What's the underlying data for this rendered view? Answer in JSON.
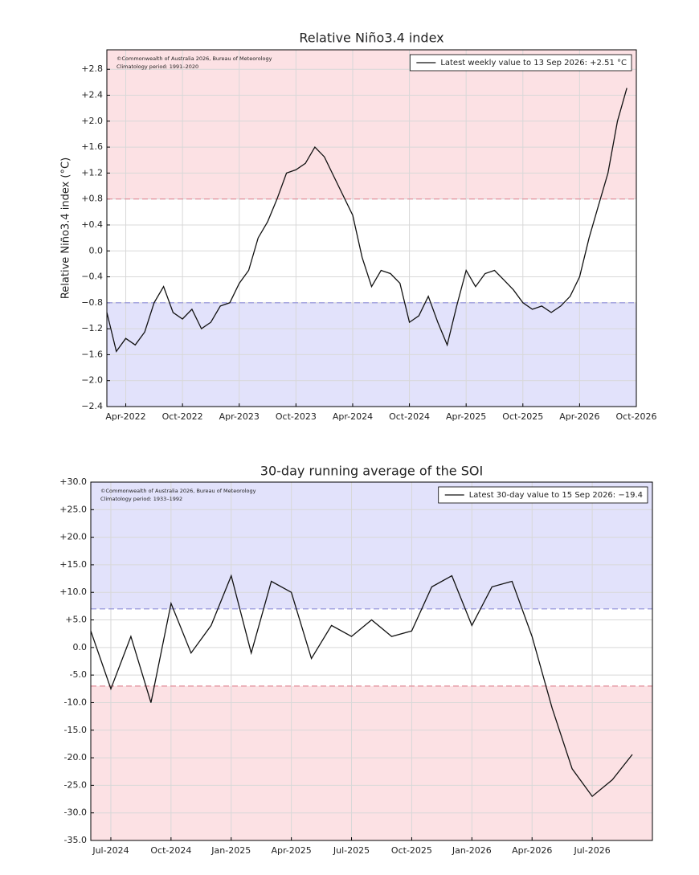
{
  "chart_data": [
    {
      "type": "line",
      "title": "Relative Niño3.4 index",
      "ylabel": "Relative Niño3.4 index (°C)",
      "notes": [
        "©Commonwealth of Australia 2026, Bureau of Meteorology",
        "Climatology period: 1991–2020"
      ],
      "legend": "upper right",
      "grid": true,
      "above": {
        "value": 0.8,
        "color": "#fce1e4",
        "line_color": "#e08a96"
      },
      "below": {
        "value": -0.8,
        "color": "#e2e2fb",
        "line_color": "#8f8fd8"
      },
      "x": [
        "2022-02",
        "2022-03",
        "2022-04",
        "2022-05",
        "2022-06",
        "2022-07",
        "2022-08",
        "2022-09",
        "2022-10",
        "2022-11",
        "2022-12",
        "2023-01",
        "2023-02",
        "2023-03",
        "2023-04",
        "2023-05",
        "2023-06",
        "2023-07",
        "2023-08",
        "2023-09",
        "2023-10",
        "2023-11",
        "2023-12",
        "2024-01",
        "2024-02",
        "2024-03",
        "2024-04",
        "2024-05",
        "2024-06",
        "2024-07",
        "2024-08",
        "2024-09",
        "2024-10",
        "2024-11",
        "2024-12",
        "2025-01",
        "2025-02",
        "2025-03",
        "2025-04",
        "2025-05",
        "2025-06",
        "2025-07",
        "2025-08",
        "2025-09",
        "2025-10",
        "2025-11",
        "2025-12",
        "2026-01",
        "2026-02",
        "2026-03",
        "2026-04",
        "2026-05",
        "2026-06",
        "2026-07",
        "2026-08",
        "2026-09"
      ],
      "series": [
        {
          "name": "Latest weekly value to 13 Sep 2026: +2.51 °C",
          "color": "#111111",
          "values": [
            -0.95,
            -1.55,
            -1.35,
            -1.45,
            -1.25,
            -0.8,
            -0.55,
            -0.95,
            -1.05,
            -0.9,
            -1.2,
            -1.1,
            -0.85,
            -0.8,
            -0.5,
            -0.3,
            0.2,
            0.45,
            0.8,
            1.2,
            1.25,
            1.35,
            1.6,
            1.45,
            1.15,
            0.85,
            0.55,
            -0.1,
            -0.55,
            -0.3,
            -0.35,
            -0.5,
            -1.1,
            -1.0,
            -0.7,
            -1.1,
            -1.45,
            -0.85,
            -0.3,
            -0.55,
            -0.35,
            -0.3,
            -0.45,
            -0.6,
            -0.8,
            -0.9,
            -0.85,
            -0.95,
            -0.85,
            -0.7,
            -0.4,
            0.2,
            0.7,
            1.2,
            2.0,
            2.51
          ]
        }
      ],
      "xlim": [
        "2022-02",
        "2026-10"
      ],
      "xticks": [
        {
          "value": "2022-04",
          "label": "Apr-2022"
        },
        {
          "value": "2022-10",
          "label": "Oct-2022"
        },
        {
          "value": "2023-04",
          "label": "Apr-2023"
        },
        {
          "value": "2023-10",
          "label": "Oct-2023"
        },
        {
          "value": "2024-04",
          "label": "Apr-2024"
        },
        {
          "value": "2024-10",
          "label": "Oct-2024"
        },
        {
          "value": "2025-04",
          "label": "Apr-2025"
        },
        {
          "value": "2025-10",
          "label": "Oct-2025"
        },
        {
          "value": "2026-04",
          "label": "Apr-2026"
        },
        {
          "value": "2026-10",
          "label": "Oct-2026"
        }
      ],
      "ylim": [
        -2.4,
        3.1
      ],
      "yticks": [
        {
          "value": -2.4,
          "label": "−2.4"
        },
        {
          "value": -2.0,
          "label": "−2.0"
        },
        {
          "value": -1.6,
          "label": "−1.6"
        },
        {
          "value": -1.2,
          "label": "−1.2"
        },
        {
          "value": -0.8,
          "label": "−0.8"
        },
        {
          "value": -0.4,
          "label": "−0.4"
        },
        {
          "value": 0,
          "label": "0.0"
        },
        {
          "value": 0.4,
          "label": "+0.4"
        },
        {
          "value": 0.8,
          "label": "+0.8"
        },
        {
          "value": 1.2,
          "label": "+1.2"
        },
        {
          "value": 1.6,
          "label": "+1.6"
        },
        {
          "value": 2.0,
          "label": "+2.0"
        },
        {
          "value": 2.4,
          "label": "+2.4"
        },
        {
          "value": 2.8,
          "label": "+2.8"
        }
      ]
    },
    {
      "type": "line",
      "title": "30-day running average of the SOI",
      "notes": [
        "©Commonwealth of Australia 2026, Bureau of Meteorology",
        "Climatology period: 1933–1992"
      ],
      "legend": "upper right",
      "grid": true,
      "above": {
        "value": 7,
        "color": "#e2e2fb",
        "line_color": "#8f8fd8"
      },
      "below": {
        "value": -7,
        "color": "#fce1e4",
        "line_color": "#e08a96"
      },
      "x": [
        "2024-06",
        "2024-07",
        "2024-08",
        "2024-09",
        "2024-10",
        "2024-11",
        "2024-12",
        "2025-01",
        "2025-02",
        "2025-03",
        "2025-04",
        "2025-05",
        "2025-06",
        "2025-07",
        "2025-08",
        "2025-09",
        "2025-10",
        "2025-11",
        "2025-12",
        "2026-01",
        "2026-02",
        "2026-03",
        "2026-04",
        "2026-05",
        "2026-06",
        "2026-07",
        "2026-08",
        "2026-09"
      ],
      "series": [
        {
          "name": "Latest 30-day value to 15 Sep 2026: −19.4",
          "color": "#111111",
          "values": [
            3,
            -7.5,
            2,
            -10,
            8,
            -1,
            4,
            13,
            -1,
            12,
            10,
            -2,
            4,
            2,
            5,
            2,
            3,
            11,
            13,
            4,
            11,
            12,
            2,
            -11,
            -22,
            -27,
            -24,
            -19.4
          ]
        }
      ],
      "xlim": [
        "2024-06",
        "2026-10"
      ],
      "xticks": [
        {
          "value": "2024-07",
          "label": "Jul-2024"
        },
        {
          "value": "2024-10",
          "label": "Oct-2024"
        },
        {
          "value": "2025-01",
          "label": "Jan-2025"
        },
        {
          "value": "2025-04",
          "label": "Apr-2025"
        },
        {
          "value": "2025-07",
          "label": "Jul-2025"
        },
        {
          "value": "2025-10",
          "label": "Oct-2025"
        },
        {
          "value": "2026-01",
          "label": "Jan-2026"
        },
        {
          "value": "2026-04",
          "label": "Apr-2026"
        },
        {
          "value": "2026-07",
          "label": "Jul-2026"
        }
      ],
      "ylim": [
        -35,
        30
      ],
      "yticks": [
        {
          "value": -35,
          "label": "-35.0"
        },
        {
          "value": -30,
          "label": "-30.0"
        },
        {
          "value": -25,
          "label": "-25.0"
        },
        {
          "value": -20,
          "label": "-20.0"
        },
        {
          "value": -15,
          "label": "-15.0"
        },
        {
          "value": -10,
          "label": "-10.0"
        },
        {
          "value": -5,
          "label": "-5.0"
        },
        {
          "value": 0,
          "label": "0.0"
        },
        {
          "value": 5,
          "label": "+5.0"
        },
        {
          "value": 10,
          "label": "+10.0"
        },
        {
          "value": 15,
          "label": "+15.0"
        },
        {
          "value": 20,
          "label": "+20.0"
        },
        {
          "value": 25,
          "label": "+25.0"
        },
        {
          "value": 30,
          "label": "+30.0"
        }
      ]
    }
  ]
}
